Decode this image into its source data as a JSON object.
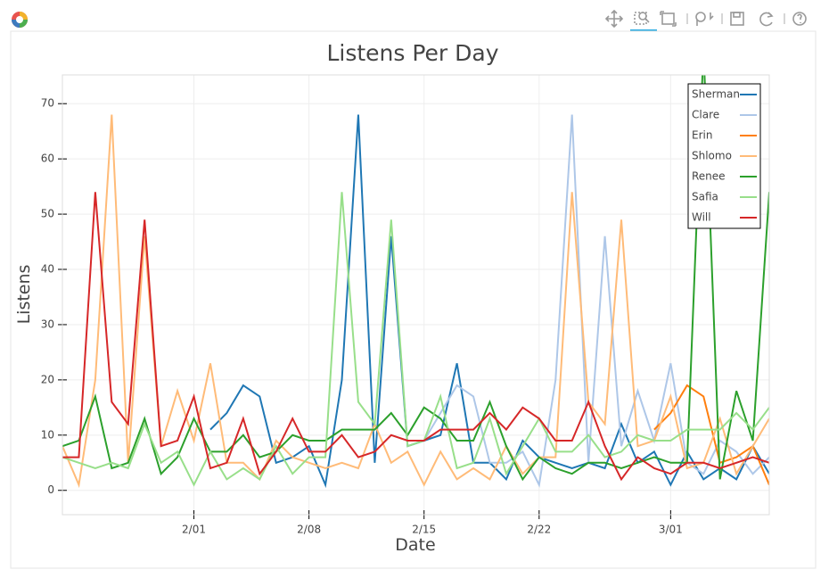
{
  "chart_data": {
    "type": "line",
    "title": "Listens Per Day",
    "x_label": "Date",
    "y_label": "Listens",
    "x": [
      "1/24",
      "1/25",
      "1/26",
      "1/27",
      "1/28",
      "1/29",
      "1/30",
      "1/31",
      "2/01",
      "2/02",
      "2/03",
      "2/04",
      "2/05",
      "2/06",
      "2/07",
      "2/08",
      "2/09",
      "2/10",
      "2/11",
      "2/12",
      "2/13",
      "2/14",
      "2/15",
      "2/16",
      "2/17",
      "2/18",
      "2/19",
      "2/20",
      "2/21",
      "2/22",
      "2/23",
      "2/24",
      "2/25",
      "2/26",
      "2/27",
      "2/28",
      "2/29",
      "3/01",
      "3/02",
      "3/03",
      "3/04",
      "3/05",
      "3/06",
      "3/07"
    ],
    "xlim": [
      "1/24",
      "3/07"
    ],
    "xticks": [
      "2/01",
      "2/08",
      "2/15",
      "2/22",
      "3/01"
    ],
    "ylim": [
      -4.4,
      75.2
    ],
    "yticks": [
      0,
      10,
      20,
      30,
      40,
      50,
      60,
      70
    ],
    "grid": true,
    "legend": "top_right",
    "series": [
      {
        "name": "Sherman",
        "color": "#1f77b4",
        "values": [
          null,
          null,
          null,
          null,
          null,
          null,
          null,
          null,
          null,
          11,
          14,
          19,
          17,
          5,
          6,
          8,
          1,
          20,
          68,
          5,
          46,
          8,
          9,
          10,
          23,
          5,
          5,
          2,
          9,
          6,
          5,
          4,
          5,
          4,
          12,
          5,
          7,
          1,
          7,
          2,
          4,
          2,
          8,
          3
        ]
      },
      {
        "name": "Clare",
        "color": "#aec7e8",
        "values": [
          null,
          null,
          null,
          null,
          null,
          null,
          null,
          null,
          null,
          null,
          null,
          null,
          null,
          null,
          null,
          null,
          null,
          null,
          null,
          null,
          null,
          null,
          9,
          14,
          19,
          17,
          5,
          5,
          7,
          1,
          20,
          68,
          5,
          46,
          8,
          18,
          9,
          23,
          5,
          3,
          9,
          7,
          3,
          6
        ]
      },
      {
        "name": "Erin",
        "color": "#ff7f0e",
        "values": [
          null,
          null,
          null,
          null,
          null,
          null,
          null,
          null,
          null,
          null,
          null,
          null,
          null,
          null,
          null,
          null,
          null,
          null,
          null,
          null,
          null,
          null,
          null,
          null,
          null,
          null,
          null,
          null,
          null,
          null,
          null,
          null,
          null,
          null,
          null,
          null,
          11,
          14,
          19,
          17,
          5,
          6,
          8,
          1
        ]
      },
      {
        "name": "Shlomo",
        "color": "#ffbb78",
        "values": [
          8,
          1,
          20,
          68,
          5,
          46,
          8,
          18,
          9,
          23,
          5,
          5,
          2,
          9,
          6,
          5,
          4,
          5,
          4,
          12,
          5,
          7,
          1,
          7,
          2,
          4,
          2,
          8,
          3,
          6,
          6,
          54,
          16,
          12,
          49,
          8,
          9,
          17,
          4,
          5,
          13,
          3,
          8,
          13
        ]
      },
      {
        "name": "Renee",
        "color": "#2ca02c",
        "values": [
          8,
          9,
          17,
          4,
          5,
          13,
          3,
          6,
          13,
          7,
          7,
          10,
          6,
          7,
          10,
          9,
          9,
          11,
          11,
          11,
          14,
          10,
          15,
          13,
          9,
          9,
          16,
          8,
          2,
          6,
          4,
          3,
          5,
          5,
          4,
          5,
          6,
          5,
          5,
          80,
          2,
          18,
          9,
          54
        ]
      },
      {
        "name": "Safia",
        "color": "#98df8a",
        "values": [
          6,
          5,
          4,
          5,
          4,
          12,
          5,
          7,
          1,
          7,
          2,
          4,
          2,
          8,
          3,
          6,
          6,
          54,
          16,
          12,
          49,
          8,
          9,
          17,
          4,
          5,
          13,
          3,
          8,
          13,
          7,
          7,
          10,
          6,
          7,
          10,
          9,
          9,
          11,
          11,
          11,
          14,
          11,
          15
        ]
      },
      {
        "name": "Will",
        "color": "#d62728",
        "values": [
          6,
          6,
          54,
          16,
          12,
          49,
          8,
          9,
          17,
          4,
          5,
          13,
          3,
          7,
          13,
          7,
          7,
          10,
          6,
          7,
          10,
          9,
          9,
          11,
          11,
          11,
          14,
          11,
          15,
          13,
          9,
          9,
          16,
          8,
          2,
          6,
          4,
          3,
          5,
          5,
          4,
          5,
          6,
          5
        ]
      }
    ]
  }
}
